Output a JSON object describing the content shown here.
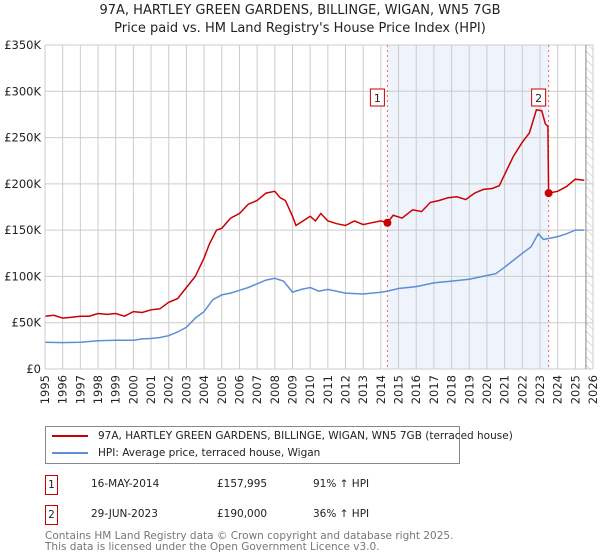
{
  "chart_data": {
    "type": "line",
    "title": "97A, HARTLEY GREEN GARDENS, BILLINGE, WIGAN, WN5 7GB",
    "subtitle": "Price paid vs. HM Land Registry's House Price Index (HPI)",
    "xlim": [
      1995,
      2026
    ],
    "ylim": [
      0,
      350000
    ],
    "yticks": [
      0,
      50000,
      100000,
      150000,
      200000,
      250000,
      300000,
      350000
    ],
    "ytick_labels": [
      "£0",
      "£50K",
      "£100K",
      "£150K",
      "£200K",
      "£250K",
      "£300K",
      "£350K"
    ],
    "xticks": [
      "1995",
      "1996",
      "1997",
      "1998",
      "1999",
      "2000",
      "2001",
      "2002",
      "2003",
      "2004",
      "2005",
      "2006",
      "2007",
      "2008",
      "2009",
      "2010",
      "2011",
      "2012",
      "2013",
      "2014",
      "2015",
      "2016",
      "2017",
      "2018",
      "2019",
      "2020",
      "2021",
      "2022",
      "2023",
      "2024",
      "2025",
      "2026"
    ],
    "grid": true,
    "shaded_range": [
      2014.37,
      2023.49
    ],
    "hatched_from": 2025.6,
    "colors": {
      "property": "#cc0000",
      "hpi": "#5b8fd6",
      "shade": "#eef3fc"
    },
    "series": [
      {
        "name": "97A, HARTLEY GREEN GARDENS, BILLINGE, WIGAN, WN5 7GB (terraced house)",
        "points": [
          [
            1995,
            57000
          ],
          [
            1995.5,
            58000
          ],
          [
            1996,
            55000
          ],
          [
            1996.5,
            56000
          ],
          [
            1997,
            57000
          ],
          [
            1997.5,
            57000
          ],
          [
            1998,
            60000
          ],
          [
            1998.5,
            59000
          ],
          [
            1999,
            60000
          ],
          [
            1999.5,
            57000
          ],
          [
            2000,
            62000
          ],
          [
            2000.5,
            61000
          ],
          [
            2001,
            64000
          ],
          [
            2001.5,
            65000
          ],
          [
            2002,
            72000
          ],
          [
            2002.5,
            76000
          ],
          [
            2003,
            88000
          ],
          [
            2003.5,
            100000
          ],
          [
            2004,
            120000
          ],
          [
            2004.3,
            135000
          ],
          [
            2004.7,
            150000
          ],
          [
            2005,
            152000
          ],
          [
            2005.5,
            163000
          ],
          [
            2006,
            168000
          ],
          [
            2006.5,
            178000
          ],
          [
            2007,
            182000
          ],
          [
            2007.5,
            190000
          ],
          [
            2008,
            192000
          ],
          [
            2008.3,
            185000
          ],
          [
            2008.6,
            182000
          ],
          [
            2009,
            165000
          ],
          [
            2009.2,
            155000
          ],
          [
            2009.6,
            160000
          ],
          [
            2010,
            165000
          ],
          [
            2010.3,
            160000
          ],
          [
            2010.6,
            168000
          ],
          [
            2011,
            160000
          ],
          [
            2011.5,
            157000
          ],
          [
            2012,
            155000
          ],
          [
            2012.5,
            160000
          ],
          [
            2013,
            156000
          ],
          [
            2013.5,
            158000
          ],
          [
            2014,
            160000
          ],
          [
            2014.37,
            157995
          ],
          [
            2014.7,
            166000
          ],
          [
            2015.2,
            163000
          ],
          [
            2015.8,
            172000
          ],
          [
            2016.3,
            170000
          ],
          [
            2016.8,
            180000
          ],
          [
            2017.3,
            182000
          ],
          [
            2017.8,
            185000
          ],
          [
            2018.3,
            186000
          ],
          [
            2018.8,
            183000
          ],
          [
            2019.3,
            190000
          ],
          [
            2019.8,
            194000
          ],
          [
            2020.3,
            195000
          ],
          [
            2020.7,
            198000
          ],
          [
            2021,
            210000
          ],
          [
            2021.5,
            230000
          ],
          [
            2022,
            245000
          ],
          [
            2022.4,
            255000
          ],
          [
            2022.8,
            280000
          ],
          [
            2023.1,
            279000
          ],
          [
            2023.3,
            265000
          ],
          [
            2023.45,
            262000
          ],
          [
            2023.49,
            190000
          ],
          [
            2024,
            192000
          ],
          [
            2024.5,
            197000
          ],
          [
            2025,
            205000
          ],
          [
            2025.5,
            204000
          ]
        ]
      },
      {
        "name": "HPI: Average price, terraced house, Wigan",
        "points": [
          [
            1995,
            29000
          ],
          [
            1996,
            28500
          ],
          [
            1997,
            29000
          ],
          [
            1998,
            30500
          ],
          [
            1999,
            31000
          ],
          [
            2000,
            31000
          ],
          [
            2000.5,
            32500
          ],
          [
            2001,
            33000
          ],
          [
            2001.5,
            34000
          ],
          [
            2002,
            36000
          ],
          [
            2002.5,
            40000
          ],
          [
            2003,
            45000
          ],
          [
            2003.5,
            55000
          ],
          [
            2004,
            62000
          ],
          [
            2004.5,
            75000
          ],
          [
            2005,
            80000
          ],
          [
            2005.5,
            82000
          ],
          [
            2006,
            85000
          ],
          [
            2006.5,
            88000
          ],
          [
            2007,
            92000
          ],
          [
            2007.5,
            96000
          ],
          [
            2008,
            98000
          ],
          [
            2008.5,
            95000
          ],
          [
            2009,
            83000
          ],
          [
            2009.5,
            86000
          ],
          [
            2010,
            88000
          ],
          [
            2010.5,
            84000
          ],
          [
            2011,
            86000
          ],
          [
            2012,
            82000
          ],
          [
            2013,
            81000
          ],
          [
            2014,
            83000
          ],
          [
            2014.37,
            84000
          ],
          [
            2015,
            87000
          ],
          [
            2016,
            89000
          ],
          [
            2017,
            93000
          ],
          [
            2018,
            95000
          ],
          [
            2019,
            97000
          ],
          [
            2020,
            101000
          ],
          [
            2020.5,
            103000
          ],
          [
            2021,
            110000
          ],
          [
            2022,
            125000
          ],
          [
            2022.5,
            132000
          ],
          [
            2022.9,
            146000
          ],
          [
            2023.2,
            140000
          ],
          [
            2023.5,
            141000
          ],
          [
            2024,
            143000
          ],
          [
            2024.5,
            146000
          ],
          [
            2025,
            150000
          ],
          [
            2025.5,
            150000
          ]
        ]
      }
    ],
    "sales": [
      {
        "label": "1",
        "year": 2014.37,
        "price": 157995
      },
      {
        "label": "2",
        "year": 2023.49,
        "price": 190000
      }
    ]
  },
  "legend": {
    "property": "97A, HARTLEY GREEN GARDENS, BILLINGE, WIGAN, WN5 7GB (terraced house)",
    "hpi": "HPI: Average price, terraced house, Wigan"
  },
  "transactions": [
    {
      "num": "1",
      "date": "16-MAY-2014",
      "price": "£157,995",
      "hpi": "91% ↑ HPI"
    },
    {
      "num": "2",
      "date": "29-JUN-2023",
      "price": "£190,000",
      "hpi": "36% ↑ HPI"
    }
  ],
  "footer": {
    "line1": "Contains HM Land Registry data © Crown copyright and database right 2025.",
    "line2": "This data is licensed under the Open Government Licence v3.0."
  }
}
